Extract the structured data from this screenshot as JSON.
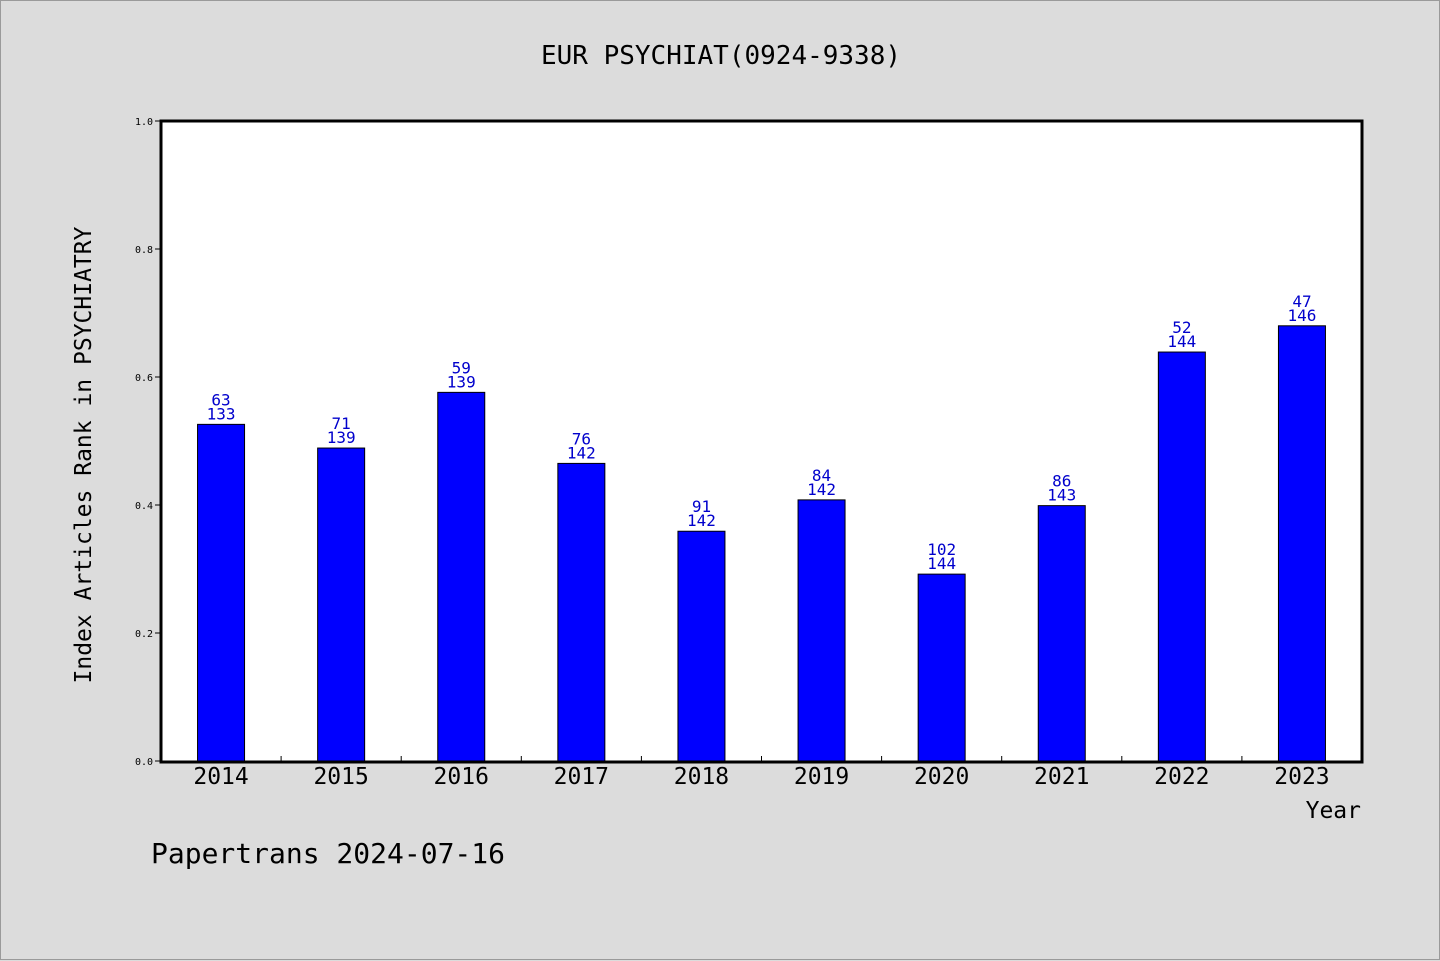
{
  "chart_data": {
    "type": "bar",
    "title": "EUR PSYCHIAT(0924-9338)",
    "xlabel": "Year",
    "ylabel": "Index Articles Rank in PSYCHIATRY",
    "ylim": [
      0.0,
      1.0
    ],
    "yticks": [
      "0.0",
      "0.2",
      "0.4",
      "0.6",
      "0.8",
      "1.0"
    ],
    "categories": [
      "2014",
      "2015",
      "2016",
      "2017",
      "2018",
      "2019",
      "2020",
      "2021",
      "2022",
      "2023"
    ],
    "values": [
      0.526,
      0.489,
      0.576,
      0.465,
      0.359,
      0.408,
      0.292,
      0.399,
      0.639,
      0.68
    ],
    "labels_top": [
      "63",
      "71",
      "59",
      "76",
      "91",
      "84",
      "102",
      "86",
      "52",
      "47"
    ],
    "labels_bottom": [
      "133",
      "139",
      "139",
      "142",
      "142",
      "142",
      "144",
      "143",
      "144",
      "146"
    ],
    "bar_color": "#0000ff",
    "label_color": "#0000cc",
    "grid": false,
    "legend": false
  },
  "footer": "Papertrans 2024-07-16"
}
